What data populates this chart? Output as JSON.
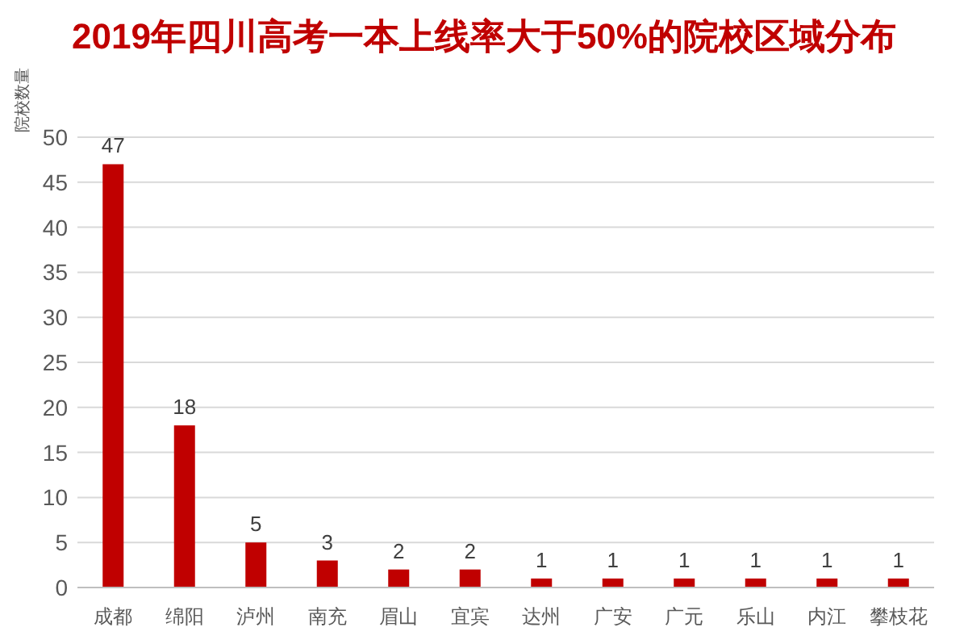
{
  "chart_data": {
    "type": "bar",
    "title": "2019年四川高考一本上线率大于50%的院校区域分布",
    "ylabel": "院校数量",
    "categories": [
      "成都",
      "绵阳",
      "泸州",
      "南充",
      "眉山",
      "宜宾",
      "达州",
      "广安",
      "广元",
      "乐山",
      "内江",
      "攀枝花"
    ],
    "values": [
      47,
      18,
      5,
      3,
      2,
      2,
      1,
      1,
      1,
      1,
      1,
      1
    ],
    "color": "#c00000",
    "ylim": [
      0,
      50
    ],
    "yticks": [
      0,
      5,
      10,
      15,
      20,
      25,
      30,
      35,
      40,
      45,
      50
    ],
    "grid": "y",
    "data_labels": true
  }
}
